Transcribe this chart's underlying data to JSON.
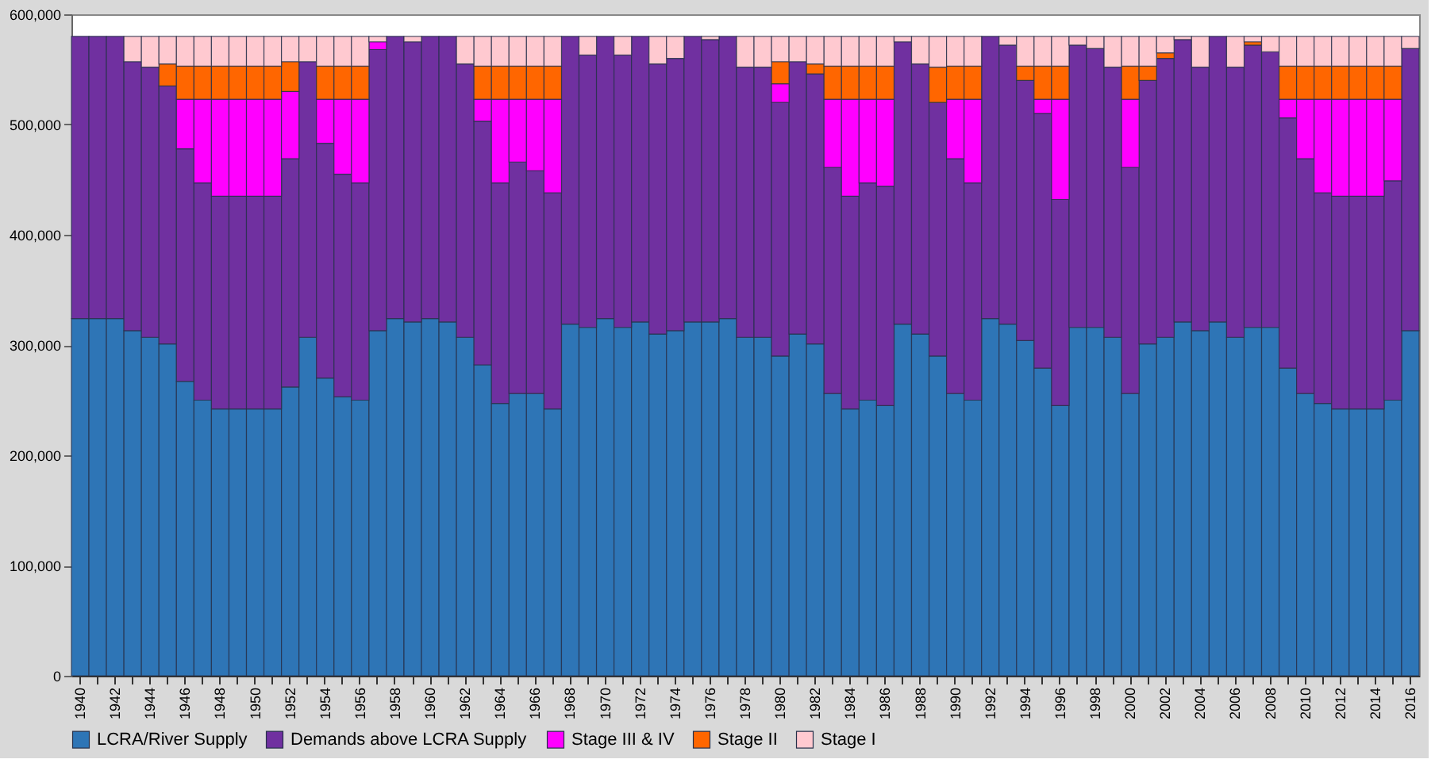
{
  "chart_data": {
    "type": "bar",
    "stacked": true,
    "categories": [
      "1940",
      null,
      "1942",
      null,
      "1944",
      null,
      "1946",
      null,
      "1948",
      null,
      "1950",
      null,
      "1952",
      null,
      "1954",
      null,
      "1956",
      null,
      "1958",
      null,
      "1960",
      null,
      "1962",
      null,
      "1964",
      null,
      "1966",
      null,
      "1968",
      null,
      "1970",
      null,
      "1972",
      null,
      "1974",
      null,
      "1976",
      null,
      "1978",
      null,
      "1980",
      null,
      "1982",
      null,
      "1984",
      null,
      "1986",
      null,
      "1988",
      null,
      "1990",
      null,
      "1992",
      null,
      "1994",
      null,
      "1996",
      null,
      "1998",
      null,
      "2000",
      null,
      "2002",
      null,
      "2004",
      null,
      "2006",
      null,
      "2008",
      null,
      "2010",
      null,
      "2012",
      null,
      "2014",
      null,
      "2016"
    ],
    "series": [
      {
        "name": "LCRA/River Supply",
        "color": "#2e75b6",
        "values": [
          324000,
          324000,
          324000,
          313000,
          307000,
          301000,
          267000,
          250000,
          242000,
          242000,
          242000,
          242000,
          262000,
          307000,
          270000,
          253000,
          250000,
          313000,
          324000,
          321000,
          324000,
          321000,
          307000,
          282000,
          247000,
          256000,
          256000,
          242000,
          319000,
          316000,
          324000,
          316000,
          321000,
          310000,
          313000,
          321000,
          321000,
          324000,
          307000,
          307000,
          290000,
          310000,
          301000,
          256000,
          242000,
          250000,
          245000,
          319000,
          310000,
          290000,
          256000,
          250000,
          324000,
          319000,
          304000,
          279000,
          245000,
          316000,
          316000,
          307000,
          256000,
          301000,
          307000,
          321000,
          313000,
          321000,
          307000,
          316000,
          316000,
          279000,
          256000,
          247000,
          242000,
          242000,
          242000,
          250000,
          313000
        ]
      },
      {
        "name": "Demands above LCRA Supply",
        "color": "#7030a0",
        "values": [
          256000,
          256000,
          256000,
          244000,
          245000,
          234000,
          211000,
          197000,
          193000,
          193000,
          193000,
          193000,
          207000,
          250000,
          213000,
          202000,
          197000,
          255000,
          256000,
          254000,
          256000,
          259000,
          248000,
          221000,
          200000,
          210000,
          202000,
          196000,
          261000,
          247000,
          256000,
          247000,
          259000,
          245000,
          247000,
          259000,
          256000,
          256000,
          245000,
          245000,
          230000,
          247000,
          245000,
          205000,
          193000,
          197000,
          199000,
          256000,
          245000,
          230000,
          213000,
          197000,
          256000,
          253000,
          236000,
          231000,
          187000,
          256000,
          253000,
          245000,
          205000,
          239000,
          253000,
          256000,
          239000,
          259000,
          245000,
          256000,
          250000,
          227000,
          213000,
          191000,
          193000,
          193000,
          193000,
          199000,
          256000
        ]
      },
      {
        "name": "Stage III & IV",
        "color": "#ff00ff",
        "values": [
          0,
          0,
          0,
          0,
          0,
          0,
          45000,
          76000,
          88000,
          88000,
          88000,
          88000,
          61000,
          0,
          40000,
          68000,
          76000,
          7000,
          0,
          0,
          0,
          0,
          0,
          20000,
          76000,
          57000,
          65000,
          85000,
          0,
          0,
          0,
          0,
          0,
          0,
          0,
          0,
          0,
          0,
          0,
          0,
          17000,
          0,
          0,
          62000,
          88000,
          76000,
          79000,
          0,
          0,
          0,
          54000,
          76000,
          0,
          0,
          0,
          13000,
          91000,
          0,
          0,
          0,
          62000,
          0,
          0,
          0,
          0,
          0,
          0,
          0,
          0,
          17000,
          54000,
          85000,
          88000,
          88000,
          88000,
          74000,
          0
        ]
      },
      {
        "name": "Stage II",
        "color": "#ff6600",
        "values": [
          0,
          0,
          0,
          0,
          0,
          20000,
          30000,
          30000,
          30000,
          30000,
          30000,
          30000,
          27000,
          0,
          30000,
          30000,
          30000,
          0,
          0,
          0,
          0,
          0,
          0,
          30000,
          30000,
          30000,
          30000,
          30000,
          0,
          0,
          0,
          0,
          0,
          0,
          0,
          0,
          0,
          0,
          0,
          0,
          20000,
          0,
          9000,
          30000,
          30000,
          30000,
          30000,
          0,
          0,
          32000,
          30000,
          30000,
          0,
          0,
          13000,
          30000,
          30000,
          0,
          0,
          0,
          30000,
          13000,
          5000,
          0,
          0,
          0,
          0,
          3000,
          0,
          30000,
          30000,
          30000,
          30000,
          30000,
          30000,
          30000,
          0
        ]
      },
      {
        "name": "Stage I",
        "color": "#ffc9d0",
        "values": [
          0,
          0,
          0,
          23000,
          28000,
          25000,
          27000,
          27000,
          27000,
          27000,
          27000,
          27000,
          23000,
          23000,
          27000,
          27000,
          27000,
          5000,
          0,
          5000,
          0,
          0,
          25000,
          27000,
          27000,
          27000,
          27000,
          27000,
          0,
          17000,
          0,
          17000,
          0,
          25000,
          20000,
          0,
          3000,
          0,
          28000,
          28000,
          23000,
          23000,
          25000,
          27000,
          27000,
          27000,
          27000,
          5000,
          25000,
          28000,
          27000,
          27000,
          0,
          8000,
          27000,
          27000,
          27000,
          8000,
          11000,
          28000,
          27000,
          27000,
          15000,
          3000,
          28000,
          0,
          28000,
          5000,
          14000,
          27000,
          27000,
          27000,
          27000,
          27000,
          27000,
          27000,
          11000
        ]
      }
    ],
    "ylim": [
      0,
      600000
    ],
    "yticks": [
      0,
      {
        "value": 100000,
        "label": "100,000"
      },
      {
        "value": 200000,
        "label": "200,000"
      },
      {
        "value": 300000,
        "label": "300,000"
      },
      {
        "value": 400000,
        "label": "400,000"
      },
      {
        "value": 500000,
        "label": "500,000"
      },
      {
        "value": 600000,
        "label": "600,000"
      }
    ],
    "grid": false,
    "legend": "bottom"
  }
}
